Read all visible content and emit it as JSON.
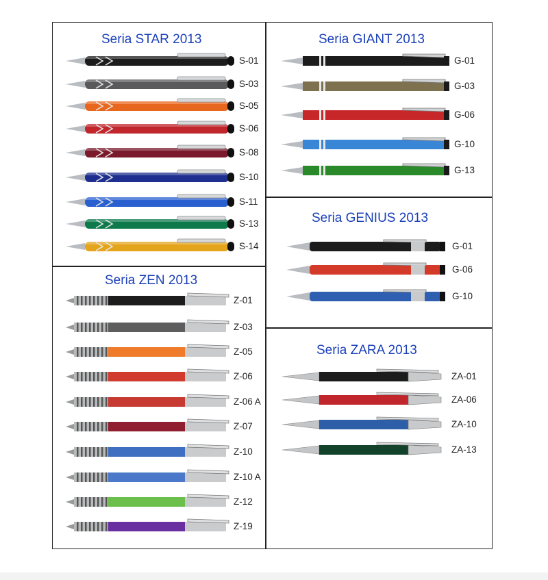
{
  "sections": {
    "star": {
      "title": "Seria STAR 2013",
      "items": [
        {
          "code": "S-01",
          "color": "#1c1c1c"
        },
        {
          "code": "S-03",
          "color": "#5a5a5c"
        },
        {
          "code": "S-05",
          "color": "#e8671e"
        },
        {
          "code": "S-06",
          "color": "#c0262b"
        },
        {
          "code": "S-08",
          "color": "#7a1a2c"
        },
        {
          "code": "S-10",
          "color": "#1f2f8f"
        },
        {
          "code": "S-11",
          "color": "#2a5fd0"
        },
        {
          "code": "S-13",
          "color": "#0e7a4c"
        },
        {
          "code": "S-14",
          "color": "#e4a51c"
        }
      ]
    },
    "giant": {
      "title": "Seria GIANT 2013",
      "items": [
        {
          "code": "G-01",
          "color": "#1c1c1c"
        },
        {
          "code": "G-03",
          "color": "#7d7150"
        },
        {
          "code": "G-06",
          "color": "#c8272a"
        },
        {
          "code": "G-10",
          "color": "#3a86d6"
        },
        {
          "code": "G-13",
          "color": "#2a8a2a"
        }
      ]
    },
    "genius": {
      "title": "Seria GENIUS 2013",
      "items": [
        {
          "code": "G-01",
          "color": "#1c1c1c"
        },
        {
          "code": "G-06",
          "color": "#d43a2a"
        },
        {
          "code": "G-10",
          "color": "#2f5fb0"
        }
      ]
    },
    "zen": {
      "title": "Seria ZEN 2013",
      "items": [
        {
          "code": "Z-01",
          "color": "#1c1c1c"
        },
        {
          "code": "Z-03",
          "color": "#5d5d5d"
        },
        {
          "code": "Z-05",
          "color": "#ee7a2a"
        },
        {
          "code": "Z-06",
          "color": "#d03b2e"
        },
        {
          "code": "Z-06 A",
          "color": "#c73a32"
        },
        {
          "code": "Z-07",
          "color": "#8f1f30"
        },
        {
          "code": "Z-10",
          "color": "#3e6fc0"
        },
        {
          "code": "Z-10 A",
          "color": "#4b78c8"
        },
        {
          "code": "Z-12",
          "color": "#6cbf4a"
        },
        {
          "code": "Z-19",
          "color": "#6a2fa0"
        }
      ]
    },
    "zara": {
      "title": "Seria ZARA 2013",
      "items": [
        {
          "code": "ZA-01",
          "color": "#1c1c1c"
        },
        {
          "code": "ZA-06",
          "color": "#c0262b"
        },
        {
          "code": "ZA-10",
          "color": "#2e5ea8"
        },
        {
          "code": "ZA-13",
          "color": "#13422a"
        }
      ]
    }
  }
}
